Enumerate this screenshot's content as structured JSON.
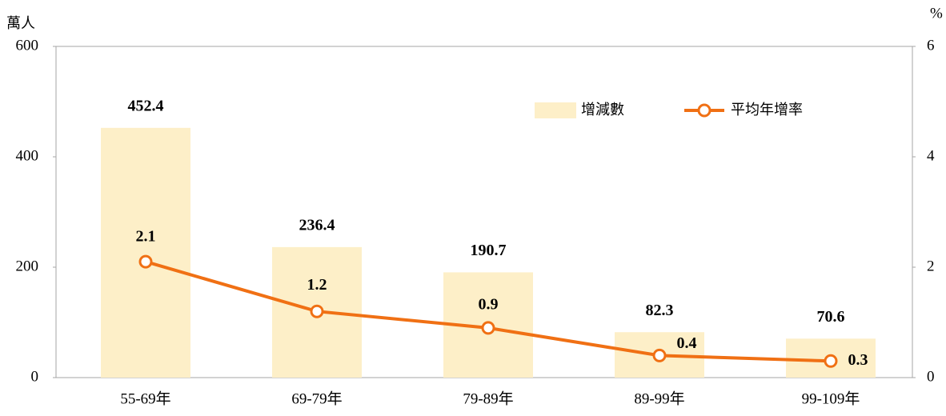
{
  "chart_data": {
    "type": "bar_line",
    "y_label": "萬人",
    "y2_label": "%",
    "categories": [
      "55-69年",
      "69-79年",
      "79-89年",
      "89-99年",
      "99-109年"
    ],
    "series": [
      {
        "name": "增減數",
        "type": "bar",
        "color": "#fdefc8",
        "label_color": "#000000",
        "values": [
          452.4,
          236.4,
          190.7,
          82.3,
          70.6
        ]
      },
      {
        "name": "平均年增率",
        "type": "line",
        "axis": "y2",
        "color": "#f07014",
        "label_color": "#f07014",
        "values": [
          2.1,
          1.2,
          0.9,
          0.4,
          0.3
        ]
      }
    ],
    "ylim": [
      0,
      600
    ],
    "yticks": [
      0,
      200,
      400,
      600
    ],
    "y2lim": [
      0,
      6
    ],
    "y2ticks": [
      0,
      2,
      4,
      6
    ],
    "legend": "top-right"
  }
}
